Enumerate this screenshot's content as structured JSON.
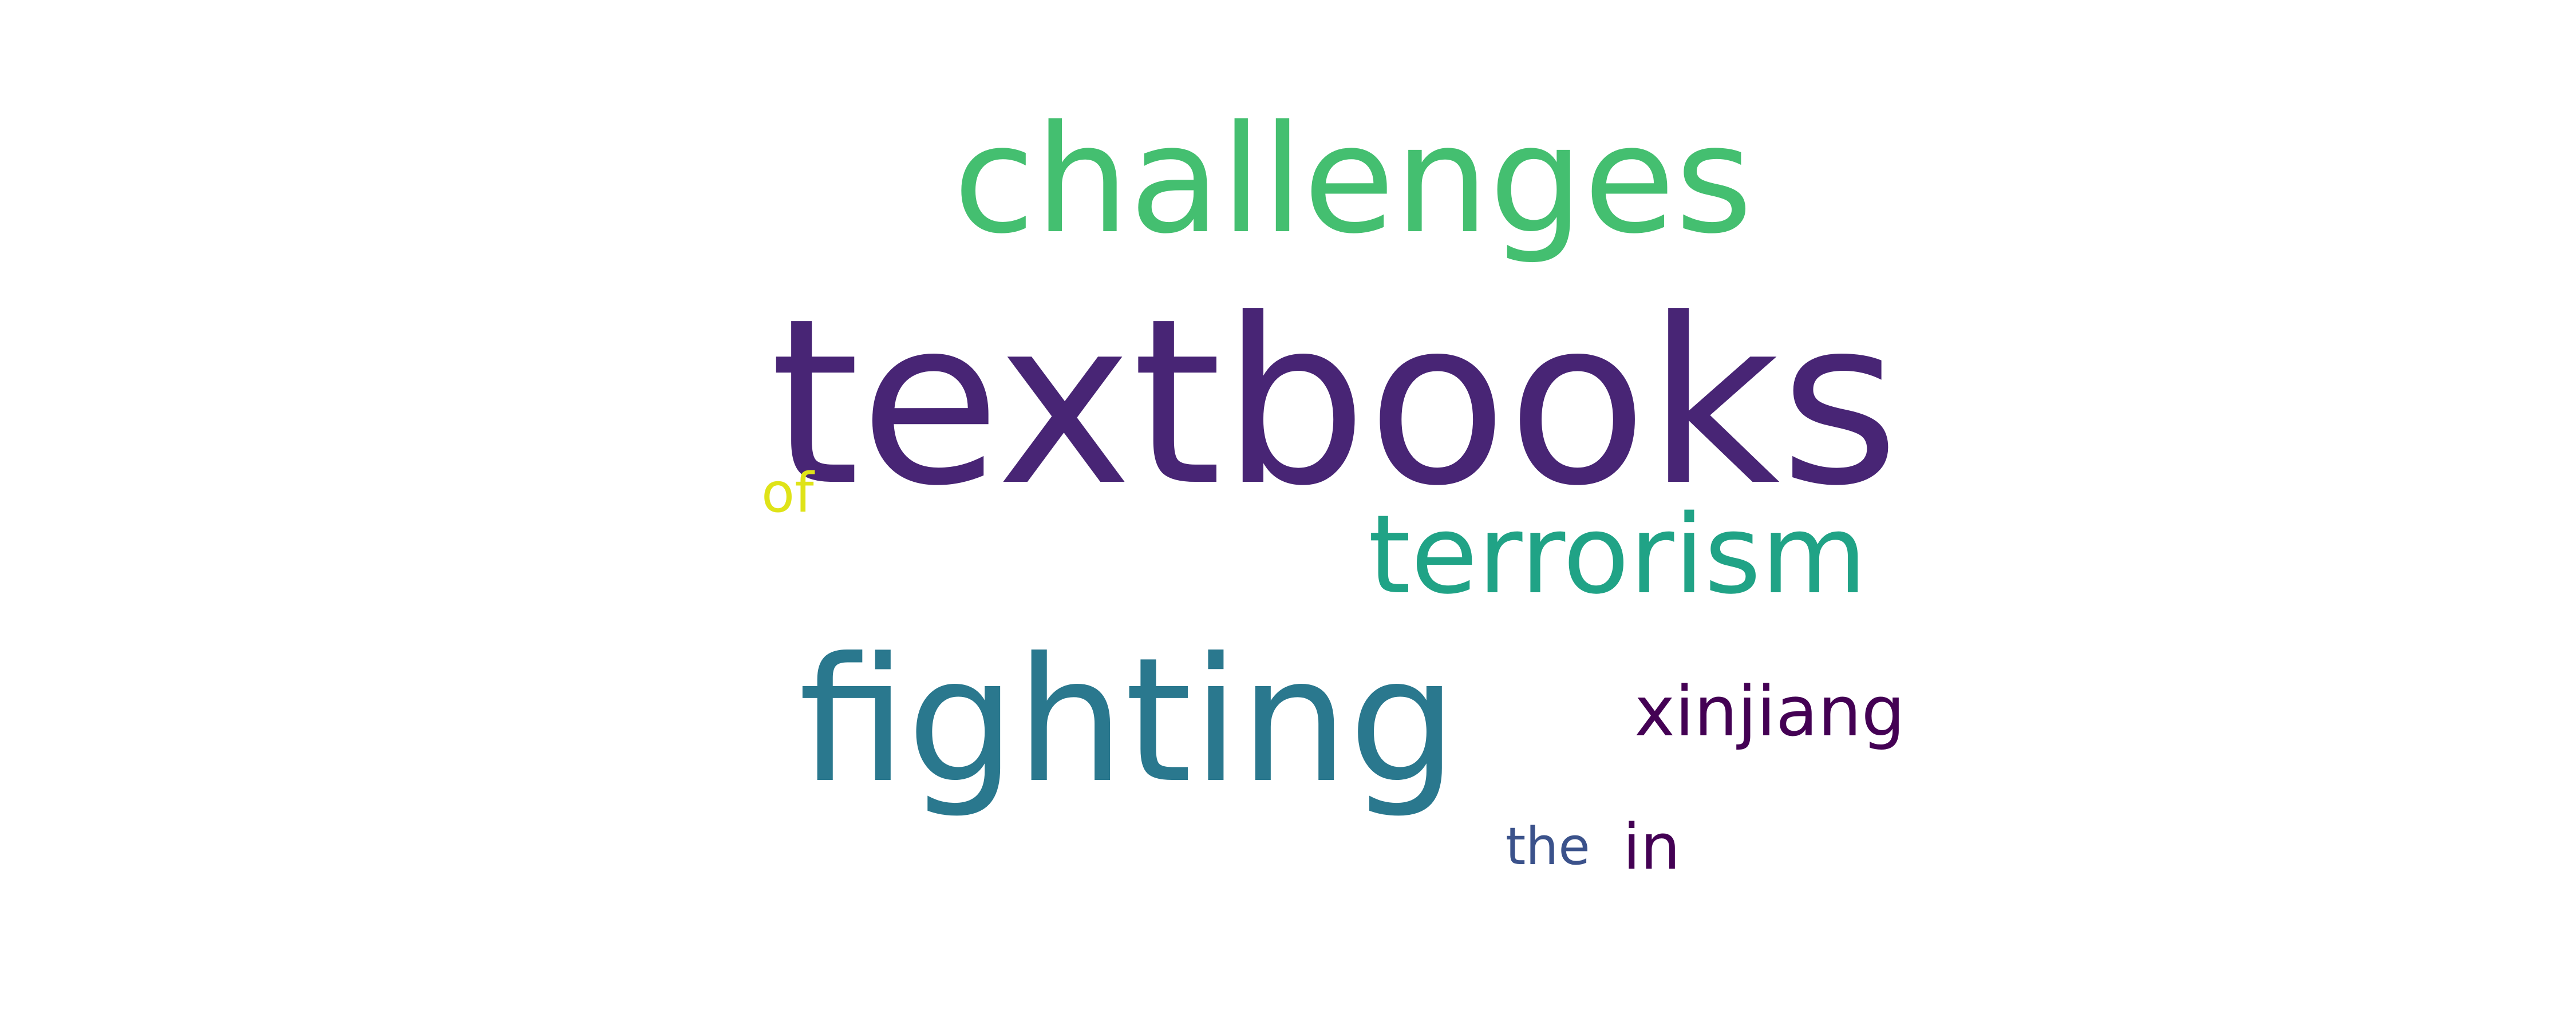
{
  "wordcloud": {
    "words": [
      {
        "text": "challenges",
        "color": "#44bf70"
      },
      {
        "text": "textbooks",
        "color": "#482575"
      },
      {
        "text": "terrorism",
        "color": "#20a386"
      },
      {
        "text": "fighting",
        "color": "#2a788e"
      },
      {
        "text": "xinjiang",
        "color": "#440154"
      },
      {
        "text": "of",
        "color": "#dfe318"
      },
      {
        "text": "the",
        "color": "#3b528b"
      },
      {
        "text": "in",
        "color": "#440154"
      }
    ]
  }
}
